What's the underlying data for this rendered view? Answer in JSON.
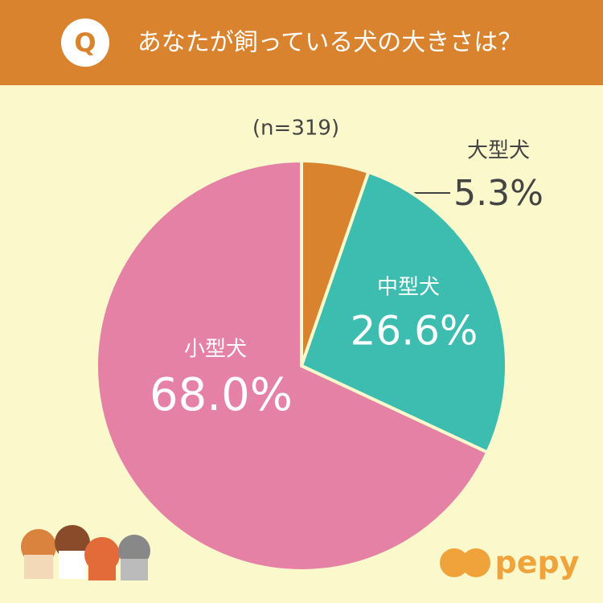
{
  "badge": "Q",
  "logo": "pepy",
  "chart_data": {
    "type": "pie",
    "title": "あなたが飼っている犬の大きさは？",
    "subtitle": "(n=319)",
    "categories": [
      "大型犬",
      "中型犬",
      "小型犬"
    ],
    "values": [
      5.3,
      26.6,
      68.0
    ],
    "value_labels": [
      "5.3%",
      "26.6%",
      "68.0%"
    ],
    "colors": [
      "#d9832f",
      "#3dbcb0",
      "#e681a6"
    ]
  }
}
